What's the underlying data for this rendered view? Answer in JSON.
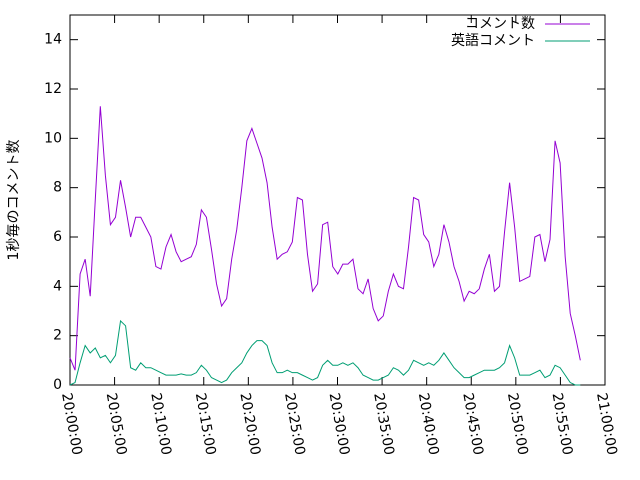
{
  "chart_data": {
    "type": "line",
    "ylabel": "1秒毎のコメント数",
    "x": [
      "20:00:00",
      "20:00:34",
      "20:01:08",
      "20:01:42",
      "20:02:16",
      "20:02:50",
      "20:03:24",
      "20:03:58",
      "20:04:32",
      "20:05:06",
      "20:05:40",
      "20:06:14",
      "20:06:48",
      "20:07:22",
      "20:07:56",
      "20:08:30",
      "20:09:04",
      "20:09:38",
      "20:10:12",
      "20:10:46",
      "20:11:20",
      "20:11:54",
      "20:12:28",
      "20:13:02",
      "20:13:36",
      "20:14:10",
      "20:14:44",
      "20:15:18",
      "20:15:52",
      "20:16:26",
      "20:17:00",
      "20:17:34",
      "20:18:08",
      "20:18:42",
      "20:19:16",
      "20:19:50",
      "20:20:24",
      "20:20:58",
      "20:21:32",
      "20:22:06",
      "20:22:40",
      "20:23:14",
      "20:23:48",
      "20:24:22",
      "20:24:56",
      "20:25:30",
      "20:26:04",
      "20:26:38",
      "20:27:12",
      "20:27:46",
      "20:28:20",
      "20:28:54",
      "20:29:28",
      "20:30:02",
      "20:30:36",
      "20:31:10",
      "20:31:44",
      "20:32:18",
      "20:32:52",
      "20:33:26",
      "20:34:00",
      "20:34:34",
      "20:35:08",
      "20:35:42",
      "20:36:16",
      "20:36:50",
      "20:37:24",
      "20:37:58",
      "20:38:32",
      "20:39:06",
      "20:39:40",
      "20:40:14",
      "20:40:48",
      "20:41:22",
      "20:41:56",
      "20:42:30",
      "20:43:04",
      "20:43:38",
      "20:44:12",
      "20:44:46",
      "20:45:20",
      "20:45:54",
      "20:46:28",
      "20:47:02",
      "20:47:36",
      "20:48:10",
      "20:48:44",
      "20:49:18",
      "20:49:52",
      "20:50:26",
      "20:51:00",
      "20:51:34",
      "20:52:08",
      "20:52:42",
      "20:53:16",
      "20:53:50",
      "20:54:24",
      "20:54:58",
      "20:55:32",
      "20:56:06",
      "20:56:40",
      "20:57:14"
    ],
    "series": [
      {
        "name": "コメント数",
        "color": "#9400d3",
        "values": [
          1.1,
          0.6,
          4.5,
          5.1,
          3.6,
          7.5,
          11.3,
          8.5,
          6.5,
          6.8,
          8.3,
          7.2,
          6.0,
          6.8,
          6.8,
          6.4,
          6.0,
          4.8,
          4.7,
          5.6,
          6.1,
          5.4,
          5.0,
          5.1,
          5.2,
          5.7,
          7.1,
          6.8,
          5.5,
          4.1,
          3.2,
          3.5,
          5.1,
          6.3,
          8.0,
          9.9,
          10.4,
          9.8,
          9.2,
          8.2,
          6.4,
          5.1,
          5.3,
          5.4,
          5.8,
          7.6,
          7.5,
          5.3,
          3.8,
          4.1,
          6.5,
          6.6,
          4.8,
          4.5,
          4.9,
          4.9,
          5.1,
          3.9,
          3.7,
          4.3,
          3.1,
          2.6,
          2.8,
          3.8,
          4.5,
          4.0,
          3.9,
          5.6,
          7.6,
          7.5,
          6.1,
          5.8,
          4.8,
          5.3,
          6.5,
          5.8,
          4.8,
          4.2,
          3.4,
          3.8,
          3.7,
          3.9,
          4.7,
          5.3,
          3.8,
          4.0,
          6.2,
          8.2,
          6.4,
          4.2,
          4.3,
          4.4,
          6.0,
          6.1,
          5.0,
          5.9,
          9.9,
          9.0,
          5.2,
          2.9,
          2.0,
          1.0
        ]
      },
      {
        "name": "英語コメント",
        "color": "#009e73",
        "values": [
          0.0,
          0.1,
          0.9,
          1.6,
          1.3,
          1.5,
          1.1,
          1.2,
          0.9,
          1.2,
          2.6,
          2.4,
          0.7,
          0.6,
          0.9,
          0.7,
          0.7,
          0.6,
          0.5,
          0.4,
          0.4,
          0.4,
          0.45,
          0.4,
          0.4,
          0.5,
          0.8,
          0.6,
          0.3,
          0.2,
          0.1,
          0.2,
          0.5,
          0.7,
          0.9,
          1.3,
          1.6,
          1.8,
          1.8,
          1.6,
          0.9,
          0.5,
          0.5,
          0.6,
          0.5,
          0.5,
          0.4,
          0.3,
          0.2,
          0.3,
          0.8,
          1.0,
          0.8,
          0.8,
          0.9,
          0.8,
          0.9,
          0.7,
          0.4,
          0.3,
          0.2,
          0.2,
          0.3,
          0.4,
          0.7,
          0.6,
          0.4,
          0.6,
          1.0,
          0.9,
          0.8,
          0.9,
          0.8,
          1.0,
          1.3,
          1.0,
          0.7,
          0.5,
          0.3,
          0.3,
          0.4,
          0.5,
          0.6,
          0.6,
          0.6,
          0.7,
          0.9,
          1.6,
          1.1,
          0.4,
          0.4,
          0.4,
          0.5,
          0.6,
          0.3,
          0.4,
          0.8,
          0.7,
          0.4,
          0.1,
          0.0,
          0.0
        ]
      }
    ],
    "xlim": [
      "20:00:00",
      "21:00:00"
    ],
    "xticks": [
      "20:00:00",
      "20:05:00",
      "20:10:00",
      "20:15:00",
      "20:20:00",
      "20:25:00",
      "20:30:00",
      "20:35:00",
      "20:40:00",
      "20:45:00",
      "20:50:00",
      "20:55:00",
      "21:00:00"
    ],
    "ylim": [
      0,
      15
    ],
    "yticks": [
      0,
      2,
      4,
      6,
      8,
      10,
      12,
      14
    ],
    "legend": "top-right"
  }
}
